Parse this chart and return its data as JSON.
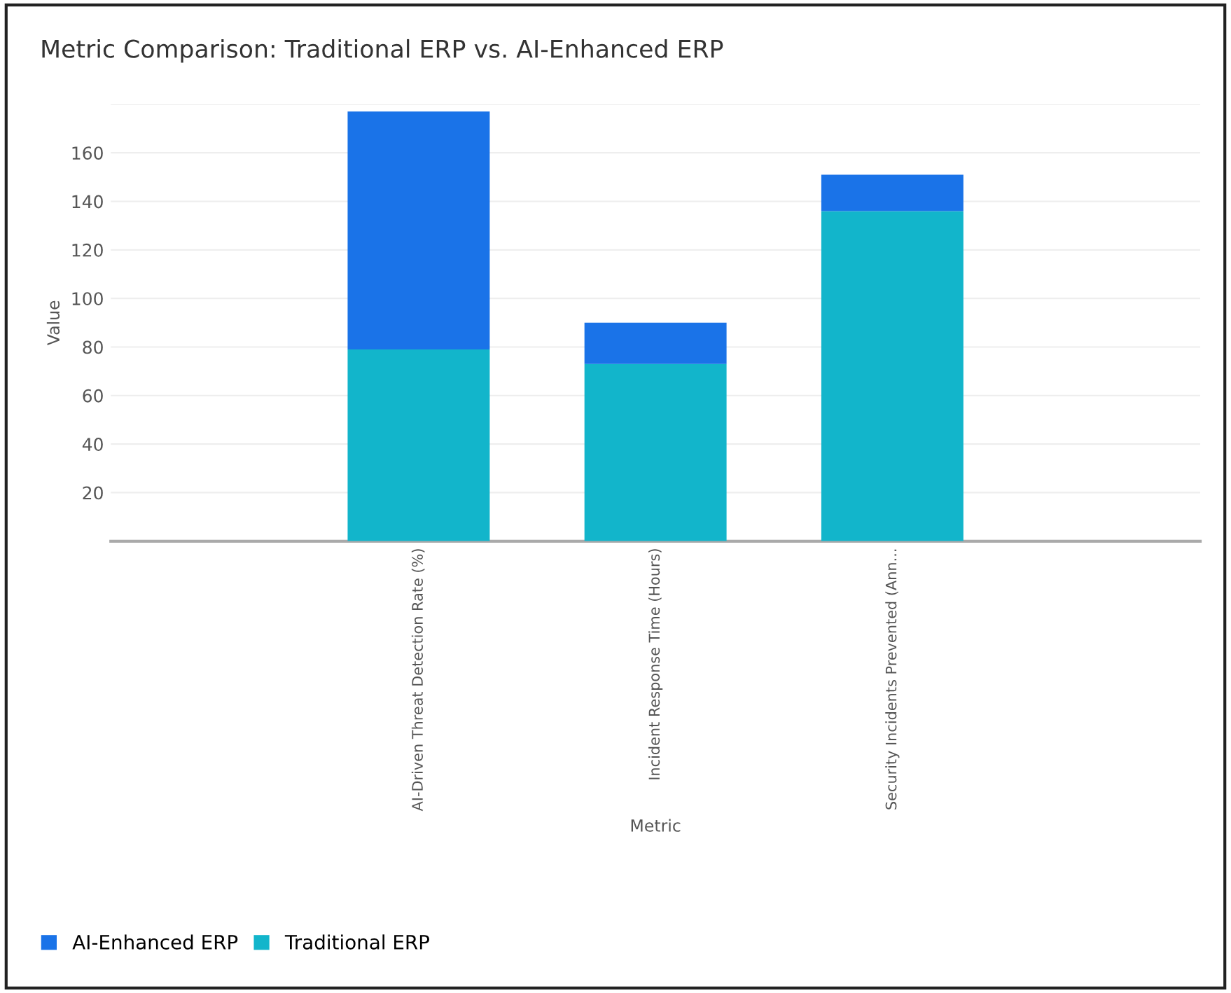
{
  "chart_data": {
    "type": "bar",
    "title": "Metric Comparison: Traditional ERP vs. AI-Enhanced ERP",
    "xlabel": "Metric",
    "ylabel": "Value",
    "categories": [
      "AI-Driven Threat Detection Rate (%)",
      "Incident Response Time (Hours)",
      "Security Incidents Prevented (Ann..."
    ],
    "stacked": true,
    "series": [
      {
        "name": "Traditional ERP",
        "color": "#12b5cb",
        "values": [
          79,
          73,
          136
        ]
      },
      {
        "name": "AI-Enhanced ERP",
        "color": "#1a73e8",
        "values": [
          98,
          17,
          15
        ]
      }
    ],
    "ylim": [
      0,
      180
    ],
    "yticks": [
      20,
      40,
      60,
      80,
      100,
      120,
      140,
      160,
      {
        "value": 180,
        "label": null
      }
    ],
    "grid": "y",
    "legend": "bottom left"
  }
}
